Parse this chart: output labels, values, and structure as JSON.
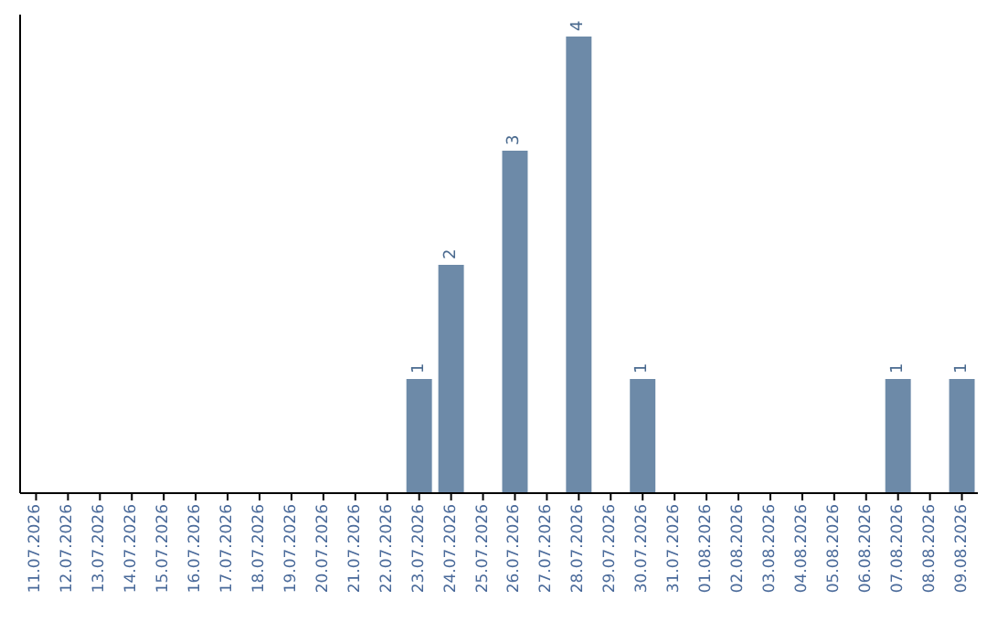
{
  "chart_data": {
    "type": "bar",
    "categories": [
      "11.07.2026",
      "12.07.2026",
      "13.07.2026",
      "14.07.2026",
      "15.07.2026",
      "16.07.2026",
      "17.07.2026",
      "18.07.2026",
      "19.07.2026",
      "20.07.2026",
      "21.07.2026",
      "22.07.2026",
      "23.07.2026",
      "24.07.2026",
      "25.07.2026",
      "26.07.2026",
      "27.07.2026",
      "28.07.2026",
      "29.07.2026",
      "30.07.2026",
      "31.07.2026",
      "01.08.2026",
      "02.08.2026",
      "03.08.2026",
      "04.08.2026",
      "05.08.2026",
      "06.08.2026",
      "07.08.2026",
      "08.08.2026",
      "09.08.2026"
    ],
    "values": [
      null,
      null,
      null,
      null,
      null,
      null,
      null,
      null,
      null,
      null,
      null,
      null,
      1,
      2,
      null,
      3,
      null,
      4,
      null,
      1,
      null,
      null,
      null,
      null,
      null,
      null,
      null,
      1,
      null,
      1
    ],
    "data_labels": true,
    "color": "#6d8aa8"
  }
}
